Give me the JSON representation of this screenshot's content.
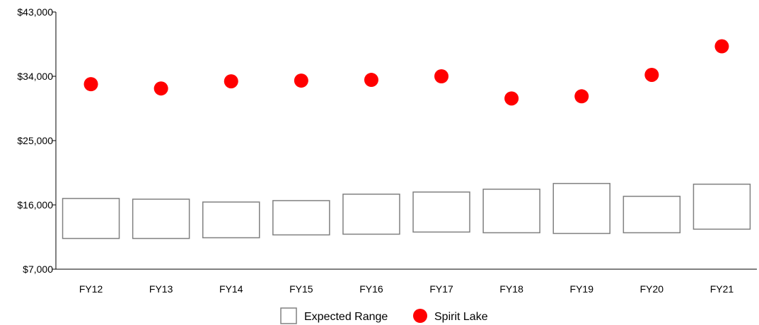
{
  "chart_data": {
    "type": "range-and-dot",
    "categories": [
      "FY12",
      "FY13",
      "FY14",
      "FY15",
      "FY16",
      "FY17",
      "FY18",
      "FY19",
      "FY20",
      "FY21"
    ],
    "y_ticks": [
      7000,
      16000,
      25000,
      34000,
      43000
    ],
    "y_tick_labels": [
      "$7,000",
      "$16,000",
      "$25,000",
      "$34,000",
      "$43,000"
    ],
    "ylim": [
      7000,
      43000
    ],
    "series": [
      {
        "name": "Expected Range",
        "kind": "range-box",
        "color": "#808080",
        "low": [
          11300,
          11300,
          11400,
          11800,
          11900,
          12200,
          12100,
          12000,
          12100,
          12600
        ],
        "high": [
          16900,
          16800,
          16400,
          16600,
          17500,
          17800,
          18200,
          19000,
          17200,
          18900
        ]
      },
      {
        "name": "Spirit Lake",
        "kind": "dot",
        "color": "#ff0000",
        "values": [
          32900,
          32300,
          33300,
          33400,
          33500,
          34000,
          30900,
          31200,
          34200,
          38200
        ]
      }
    ],
    "legend": {
      "position": "bottom-center",
      "entries": [
        "Expected Range",
        "Spirit Lake"
      ]
    },
    "grid": false
  }
}
